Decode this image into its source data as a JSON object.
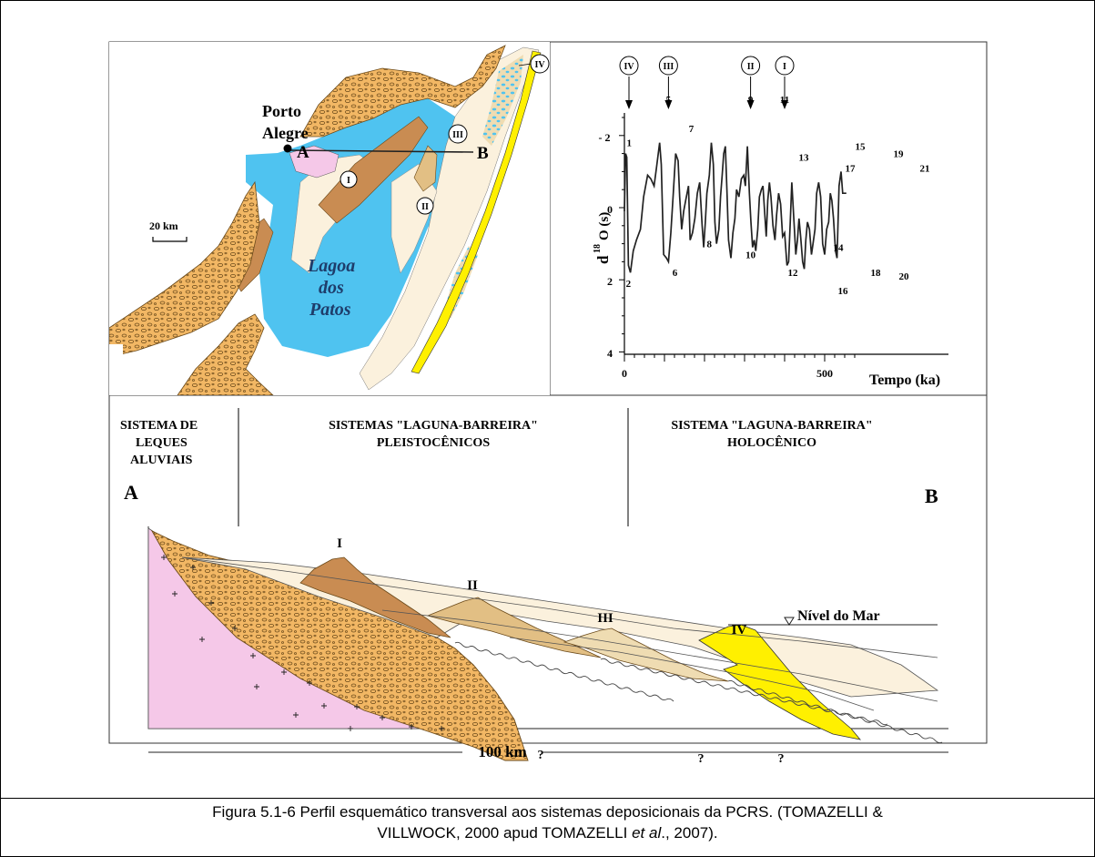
{
  "map": {
    "city": [
      "Porto",
      "Alegre"
    ],
    "point_a": "A",
    "point_b": "B",
    "lagoon": [
      "Lagoa",
      "dos",
      "Patos"
    ],
    "scale": "20 km",
    "barriers": [
      "I",
      "II",
      "III",
      "IV"
    ]
  },
  "isotope_chart": {
    "ylabel_main": "d",
    "ylabel_sup": "18",
    "ylabel_rest": "O  (s)",
    "xlabel": "Tempo (ka)",
    "yticks": [
      "- 2",
      "0",
      "2",
      "4"
    ],
    "xticks": [
      "0",
      "500"
    ],
    "stage_markers": [
      "IV",
      "III",
      "II",
      "I"
    ],
    "stage_numbers": [
      "1",
      "2",
      "5",
      "6",
      "7",
      "8",
      "9",
      "10",
      "11",
      "12",
      "13",
      "14",
      "15",
      "16",
      "17",
      "18",
      "19",
      "20",
      "21"
    ]
  },
  "chart_data": {
    "type": "line",
    "title": "",
    "xlabel": "Tempo (ka)",
    "ylabel": "d18O (s)",
    "ylim": [
      -2.5,
      4
    ],
    "y_inverted": true,
    "xlim": [
      0,
      590
    ],
    "series": [
      {
        "values": [
          [
            0,
            0.1
          ],
          [
            3,
            -1.5
          ],
          [
            6,
            -1.4
          ],
          [
            10,
            1.6
          ],
          [
            15,
            1.8
          ],
          [
            22,
            1.2
          ],
          [
            30,
            0.9
          ],
          [
            40,
            0.6
          ],
          [
            48,
            -0.3
          ],
          [
            58,
            -0.9
          ],
          [
            66,
            -0.8
          ],
          [
            74,
            -0.6
          ],
          [
            80,
            -1.1
          ],
          [
            88,
            -1.8
          ],
          [
            92,
            -1.2
          ],
          [
            98,
            1.3
          ],
          [
            105,
            1.4
          ],
          [
            110,
            1.5
          ],
          [
            116,
            0.7
          ],
          [
            122,
            -0.4
          ],
          [
            128,
            -1.5
          ],
          [
            134,
            -1.3
          ],
          [
            138,
            -0.3
          ],
          [
            143,
            0.6
          ],
          [
            148,
            0.1
          ],
          [
            153,
            -0.2
          ],
          [
            160,
            -0.6
          ],
          [
            164,
            0.9
          ],
          [
            170,
            0.7
          ],
          [
            176,
            0.3
          ],
          [
            182,
            -0.4
          ],
          [
            188,
            -0.7
          ],
          [
            194,
            0.5
          ],
          [
            198,
            1.1
          ],
          [
            202,
            0.4
          ],
          [
            206,
            -0.4
          ],
          [
            212,
            -0.9
          ],
          [
            217,
            -1.8
          ],
          [
            222,
            -1.2
          ],
          [
            226,
            0.4
          ],
          [
            230,
            1.0
          ],
          [
            236,
            0.6
          ],
          [
            240,
            -0.3
          ],
          [
            244,
            -0.9
          ],
          [
            248,
            -1.5
          ],
          [
            252,
            -1.7
          ],
          [
            256,
            -0.5
          ],
          [
            260,
            0.9
          ],
          [
            266,
            1.4
          ],
          [
            271,
            0.7
          ],
          [
            276,
            0.3
          ],
          [
            280,
            -0.5
          ],
          [
            286,
            -0.3
          ],
          [
            292,
            -0.8
          ],
          [
            298,
            -0.9
          ],
          [
            302,
            -0.6
          ],
          [
            307,
            -1.7
          ],
          [
            312,
            -0.4
          ],
          [
            316,
            0.4
          ],
          [
            320,
            1.1
          ],
          [
            324,
            0.9
          ],
          [
            328,
            1.2
          ],
          [
            333,
            0.6
          ],
          [
            337,
            -0.3
          ],
          [
            342,
            -0.5
          ],
          [
            346,
            -0.6
          ],
          [
            350,
            0.1
          ],
          [
            354,
            0.8
          ],
          [
            358,
            -0.2
          ],
          [
            362,
            -0.7
          ],
          [
            366,
            -0.3
          ],
          [
            371,
            0.5
          ],
          [
            376,
            0.9
          ],
          [
            380,
            0.2
          ],
          [
            385,
            -0.4
          ],
          [
            390,
            -0.1
          ],
          [
            395,
            0.8
          ],
          [
            400,
            0.7
          ],
          [
            406,
            1.6
          ],
          [
            410,
            1.5
          ],
          [
            414,
            0.4
          ],
          [
            418,
            -0.7
          ],
          [
            423,
            0.3
          ],
          [
            428,
            1.3
          ],
          [
            432,
            0.9
          ],
          [
            436,
            0.3
          ],
          [
            440,
            0.8
          ],
          [
            445,
            1.5
          ],
          [
            449,
            1.7
          ],
          [
            453,
            0.9
          ],
          [
            457,
            0.4
          ],
          [
            462,
            0.6
          ],
          [
            467,
            1.3
          ],
          [
            471,
            1.0
          ],
          [
            476,
            0.6
          ],
          [
            480,
            -0.4
          ],
          [
            485,
            -0.7
          ],
          [
            490,
            -0.3
          ],
          [
            495,
            1.0
          ],
          [
            500,
            1.3
          ],
          [
            505,
            0.6
          ],
          [
            510,
            0.4
          ],
          [
            514,
            -0.4
          ],
          [
            518,
            -0.2
          ],
          [
            522,
            0.3
          ],
          [
            527,
            1.2
          ],
          [
            531,
            1.4
          ],
          [
            536,
            -0.6
          ],
          [
            541,
            -1.0
          ],
          [
            545,
            -0.4
          ],
          [
            550,
            -0.4
          ],
          [
            554,
            -0.4
          ]
        ]
      }
    ]
  },
  "section": {
    "headers": [
      [
        "SISTEMA DE",
        "LEQUES",
        "ALUVIAIS"
      ],
      [
        "SISTEMAS \"LAGUNA-BARREIRA\"",
        "PLEISTOCÊNICOS"
      ],
      [
        "SISTEMA \"LAGUNA-BARREIRA\"",
        "HOLOCÊNICO"
      ]
    ],
    "label_a": "A",
    "label_b": "B",
    "barriers": [
      "I",
      "II",
      "III",
      "IV"
    ],
    "sea_level": "Nível do Mar",
    "unknowns": [
      "?",
      "?",
      "?"
    ],
    "scale": "100 km"
  },
  "caption": {
    "line1": "Figura 5.1-6 Perfil esquemático transversal aos sistemas deposicionais da PCRS. (TOMAZELLI &",
    "line2a": "VILLWOCK, 2000 apud TOMAZELLI ",
    "line2b": "et al",
    "line2c": "., 2007)."
  },
  "colors": {
    "lagoon": "#4fc3f0",
    "alluvial": "#f2b764",
    "barrier_I": "#c98c52",
    "barrier_II": "#e2bf84",
    "barrier_III": "#efdcb2",
    "barrier_IV": "#fff000",
    "basement": "#f5c8e8",
    "sand": "#fbf1dd"
  }
}
